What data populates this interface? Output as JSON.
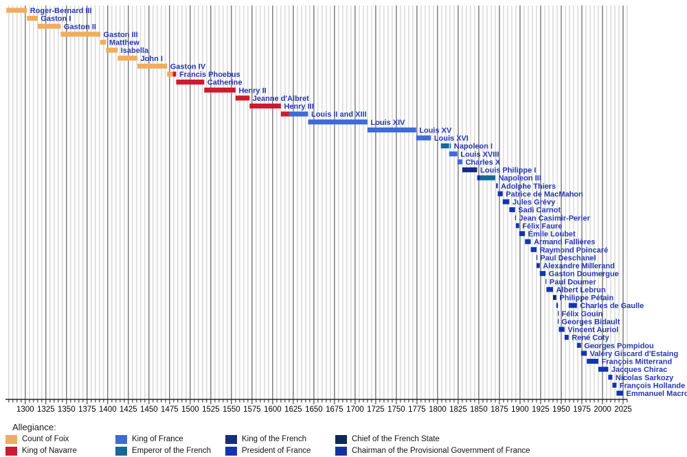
{
  "chart_data": {
    "type": "bar",
    "variant": "horizontal-timeline-gantt",
    "title": "",
    "legend_title": "Allegiance:",
    "legend_position": "bottom",
    "grid": true,
    "x_axis": {
      "start": 1276,
      "end": 2030,
      "minor_tick_interval": 5,
      "major_tick_interval": 25,
      "tick_labels": [
        1300,
        1325,
        1350,
        1375,
        1400,
        1425,
        1450,
        1475,
        1500,
        1525,
        1550,
        1575,
        1600,
        1625,
        1650,
        1675,
        1700,
        1725,
        1750,
        1775,
        1800,
        1825,
        1850,
        1875,
        1900,
        1925,
        1950,
        1975,
        2000,
        2025
      ]
    },
    "allegiances": {
      "foix": {
        "label": "Count of Foix",
        "color": "#eeae5e"
      },
      "navarre": {
        "label": "King of Navarre",
        "color": "#cd1a2d"
      },
      "france": {
        "label": "King of France",
        "color": "#3e6bd4"
      },
      "emperor": {
        "label": "Emperor of the French",
        "color": "#15689b"
      },
      "king_french": {
        "label": "King of the French",
        "color": "#142e7d"
      },
      "president": {
        "label": "President of France",
        "color": "#1434ae"
      },
      "chief": {
        "label": "Chief of the French State",
        "color": "#0b2a52"
      },
      "chairman": {
        "label": "Chairman of the Provisional Government of France",
        "color": "#1133a2"
      }
    },
    "legend_columns": [
      [
        "foix",
        "navarre"
      ],
      [
        "france",
        "emperor"
      ],
      [
        "king_french",
        "president"
      ],
      [
        "chief",
        "chairman"
      ]
    ],
    "rows": [
      {
        "name": "Roger-Bernard III",
        "segments": [
          {
            "allegiance": "foix",
            "start": 1277,
            "end": 1302
          }
        ]
      },
      {
        "name": "Gaston I",
        "segments": [
          {
            "allegiance": "foix",
            "start": 1302,
            "end": 1315
          }
        ]
      },
      {
        "name": "Gaston II",
        "segments": [
          {
            "allegiance": "foix",
            "start": 1315,
            "end": 1343
          }
        ]
      },
      {
        "name": "Gaston III",
        "segments": [
          {
            "allegiance": "foix",
            "start": 1343,
            "end": 1391
          }
        ]
      },
      {
        "name": "Matthew",
        "segments": [
          {
            "allegiance": "foix",
            "start": 1391,
            "end": 1398
          }
        ]
      },
      {
        "name": "Isabella",
        "segments": [
          {
            "allegiance": "foix",
            "start": 1398,
            "end": 1412
          }
        ]
      },
      {
        "name": "John I",
        "segments": [
          {
            "allegiance": "foix",
            "start": 1412,
            "end": 1436
          }
        ]
      },
      {
        "name": "Gaston IV",
        "segments": [
          {
            "allegiance": "foix",
            "start": 1436,
            "end": 1472
          }
        ]
      },
      {
        "name": "Francis Phoebus",
        "segments": [
          {
            "allegiance": "foix",
            "start": 1472,
            "end": 1479
          },
          {
            "allegiance": "navarre",
            "start": 1479,
            "end": 1483
          }
        ]
      },
      {
        "name": "Catherine",
        "segments": [
          {
            "allegiance": "navarre",
            "start": 1483,
            "end": 1517
          }
        ]
      },
      {
        "name": "Henry II",
        "segments": [
          {
            "allegiance": "navarre",
            "start": 1517,
            "end": 1555
          }
        ]
      },
      {
        "name": "Jeanne d'Albret",
        "segments": [
          {
            "allegiance": "navarre",
            "start": 1555,
            "end": 1572
          }
        ]
      },
      {
        "name": "Henry III",
        "segments": [
          {
            "allegiance": "navarre",
            "start": 1572,
            "end": 1610
          }
        ]
      },
      {
        "name": "Louis II and XIII",
        "segments": [
          {
            "allegiance": "navarre",
            "start": 1610,
            "end": 1620
          },
          {
            "allegiance": "france",
            "start": 1620,
            "end": 1643
          }
        ]
      },
      {
        "name": "Louis XIV",
        "segments": [
          {
            "allegiance": "france",
            "start": 1643,
            "end": 1715
          }
        ]
      },
      {
        "name": "Louis XV",
        "segments": [
          {
            "allegiance": "france",
            "start": 1715,
            "end": 1774
          }
        ]
      },
      {
        "name": "Louis XVI",
        "segments": [
          {
            "allegiance": "france",
            "start": 1774,
            "end": 1792
          }
        ]
      },
      {
        "name": "Napoleon I",
        "segments": [
          {
            "allegiance": "emperor",
            "start": 1804,
            "end": 1814
          },
          {
            "allegiance": "emperor",
            "start": 1815,
            "end": 1816.2
          }
        ]
      },
      {
        "name": "Louis XVIII",
        "segments": [
          {
            "allegiance": "france",
            "start": 1814,
            "end": 1824
          }
        ]
      },
      {
        "name": "Charles X",
        "segments": [
          {
            "allegiance": "france",
            "start": 1824,
            "end": 1830
          }
        ]
      },
      {
        "name": "Louis Philippe I",
        "segments": [
          {
            "allegiance": "king_french",
            "start": 1830,
            "end": 1848
          }
        ]
      },
      {
        "name": "Napoleon III",
        "segments": [
          {
            "allegiance": "president",
            "start": 1848,
            "end": 1852
          },
          {
            "allegiance": "emperor",
            "start": 1852,
            "end": 1870
          }
        ]
      },
      {
        "name": "Adolphe Thiers",
        "segments": [
          {
            "allegiance": "president",
            "start": 1871,
            "end": 1873
          }
        ]
      },
      {
        "name": "Patrice de MacMahon",
        "segments": [
          {
            "allegiance": "president",
            "start": 1873,
            "end": 1879
          }
        ]
      },
      {
        "name": "Jules Grévy",
        "segments": [
          {
            "allegiance": "president",
            "start": 1879,
            "end": 1887
          }
        ]
      },
      {
        "name": "Sadi Carnot",
        "segments": [
          {
            "allegiance": "president",
            "start": 1887,
            "end": 1894
          }
        ]
      },
      {
        "name": "Jean Casimir-Perier",
        "segments": [
          {
            "allegiance": "president",
            "start": 1894,
            "end": 1895
          }
        ]
      },
      {
        "name": "Félix Faure",
        "segments": [
          {
            "allegiance": "president",
            "start": 1895,
            "end": 1899
          }
        ]
      },
      {
        "name": "Émile Loubet",
        "segments": [
          {
            "allegiance": "president",
            "start": 1899,
            "end": 1906
          }
        ]
      },
      {
        "name": "Armand Fallières",
        "segments": [
          {
            "allegiance": "president",
            "start": 1906,
            "end": 1913
          }
        ]
      },
      {
        "name": "Raymond Poincaré",
        "segments": [
          {
            "allegiance": "president",
            "start": 1913,
            "end": 1920
          }
        ]
      },
      {
        "name": "Paul Deschanel",
        "segments": [
          {
            "allegiance": "president",
            "start": 1920,
            "end": 1920.7
          }
        ]
      },
      {
        "name": "Alexandre Millerand",
        "segments": [
          {
            "allegiance": "president",
            "start": 1920,
            "end": 1924
          }
        ]
      },
      {
        "name": "Gaston Doumergue",
        "segments": [
          {
            "allegiance": "president",
            "start": 1924,
            "end": 1931
          }
        ]
      },
      {
        "name": "Paul Doumer",
        "segments": [
          {
            "allegiance": "president",
            "start": 1931,
            "end": 1932
          }
        ]
      },
      {
        "name": "Albert Lebrun",
        "segments": [
          {
            "allegiance": "president",
            "start": 1932,
            "end": 1940
          }
        ]
      },
      {
        "name": "Philippe Pétain",
        "segments": [
          {
            "allegiance": "chief",
            "start": 1940,
            "end": 1944
          }
        ]
      },
      {
        "name": "Charles de Gaulle",
        "segments": [
          {
            "allegiance": "chairman",
            "start": 1944,
            "end": 1946
          },
          {
            "allegiance": "president",
            "start": 1959,
            "end": 1969
          }
        ]
      },
      {
        "name": "Félix Gouin",
        "segments": [
          {
            "allegiance": "chairman",
            "start": 1946,
            "end": 1946.6
          }
        ]
      },
      {
        "name": "Georges Bidault",
        "segments": [
          {
            "allegiance": "chairman",
            "start": 1946,
            "end": 1946.6
          }
        ]
      },
      {
        "name": "Vincent Auriol",
        "segments": [
          {
            "allegiance": "president",
            "start": 1947,
            "end": 1954
          }
        ]
      },
      {
        "name": "René Coty",
        "segments": [
          {
            "allegiance": "president",
            "start": 1954,
            "end": 1959
          }
        ]
      },
      {
        "name": "Georges Pompidou",
        "segments": [
          {
            "allegiance": "president",
            "start": 1969,
            "end": 1974
          }
        ]
      },
      {
        "name": "Valéry Giscard d'Estaing",
        "segments": [
          {
            "allegiance": "president",
            "start": 1974,
            "end": 1981
          }
        ]
      },
      {
        "name": "François Mitterrand",
        "segments": [
          {
            "allegiance": "president",
            "start": 1981,
            "end": 1995
          }
        ]
      },
      {
        "name": "Jacques Chirac",
        "segments": [
          {
            "allegiance": "president",
            "start": 1995,
            "end": 2007
          }
        ]
      },
      {
        "name": "Nicolas Sarkozy",
        "segments": [
          {
            "allegiance": "president",
            "start": 2007,
            "end": 2012
          }
        ]
      },
      {
        "name": "François Hollande",
        "segments": [
          {
            "allegiance": "president",
            "start": 2012,
            "end": 2017
          }
        ]
      },
      {
        "name": "Emmanuel Macron",
        "segments": [
          {
            "allegiance": "president",
            "start": 2017,
            "end": 2025
          }
        ]
      }
    ],
    "colors": {
      "grid_minor": "#c6c6c6",
      "grid_major": "#3d3d3d",
      "axis": "#222222",
      "axis_text": "#000000",
      "row_label": "#2637b0",
      "background": "#ffffff"
    }
  }
}
